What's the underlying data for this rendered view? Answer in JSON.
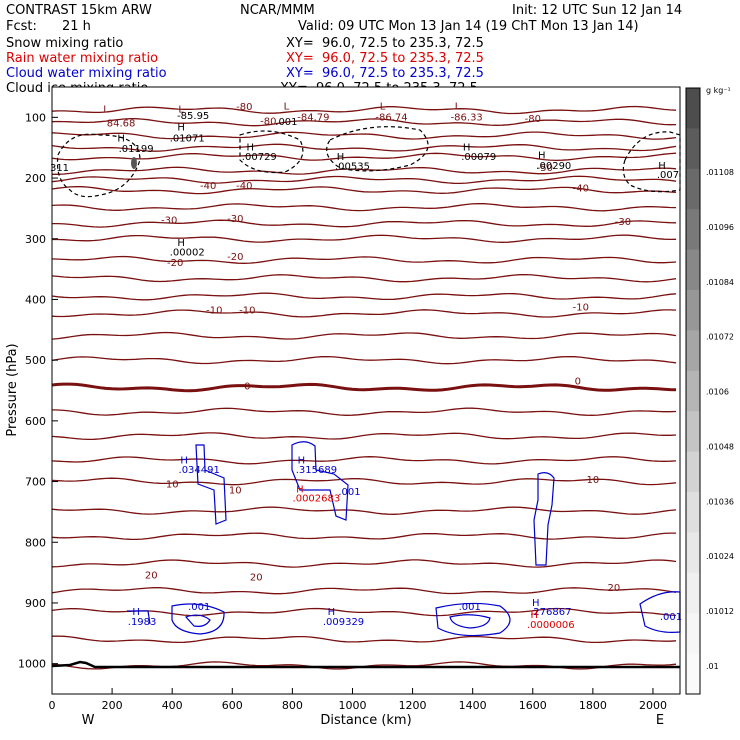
{
  "header": {
    "model": "CONTRAST 15km ARW",
    "org": "NCAR/MMM",
    "init": "Init: 12 UTC Sun 12 Jan 14",
    "fcst_label": "Fcst:",
    "fcst_value": "21 h",
    "valid": "Valid: 09 UTC Mon 13 Jan 14 (19 ChT Mon 13 Jan 14)",
    "xy": "XY=  96.0, 72.5 to 235.3, 72.5",
    "fields": [
      {
        "name": "Snow mixing ratio",
        "color": "#000000"
      },
      {
        "name": "Rain water mixing ratio",
        "color": "#dd0000"
      },
      {
        "name": "Cloud water mixing ratio",
        "color": "#0000cc"
      },
      {
        "name": "Cloud ice mixing ratio",
        "color": "#000000"
      }
    ]
  },
  "colorbar": {
    "unit": "g kg⁻¹",
    "labels": [
      ".01108",
      ".01096",
      ".01084",
      ".01072",
      ".0106",
      ".01048",
      ".01036",
      ".01024",
      ".01012",
      ".01"
    ],
    "shades": [
      "#4d4d4d",
      "#5c5c5c",
      "#6a6a6a",
      "#797979",
      "#888888",
      "#979797",
      "#a6a6a6",
      "#b5b5b5",
      "#c4c4c4",
      "#d3d3d3",
      "#dfdfdf",
      "#e8e8e8",
      "#f0f0f0",
      "#f6f6f6",
      "#fafafa"
    ]
  },
  "chart_data": {
    "type": "cross-section contour",
    "xlabel": "Distance (km)",
    "ylabel": "Pressure (hPa)",
    "x_ticks": [
      0,
      200,
      400,
      600,
      800,
      1000,
      1200,
      1400,
      1600,
      1800,
      2000
    ],
    "y_ticks": [
      100,
      200,
      300,
      400,
      500,
      600,
      700,
      800,
      900,
      1000
    ],
    "xlim": [
      0,
      2090
    ],
    "ylim": [
      50,
      1050
    ],
    "left_end_label": "W",
    "right_end_label": "E",
    "temperature_color": "#7a1010",
    "cloud_color": "#0000cc",
    "rain_color": "#dd0000",
    "temperature_isotherms": [
      {
        "label": "-80",
        "p": 88
      },
      {
        "label": "-80",
        "p": 108
      },
      {
        "label": "",
        "p": 130
      },
      {
        "label": "",
        "p": 150
      },
      {
        "label": "",
        "p": 165
      },
      {
        "label": "-50",
        "p": 188
      },
      {
        "label": "",
        "p": 203
      },
      {
        "label": "-40",
        "p": 220
      },
      {
        "label": "",
        "p": 248
      },
      {
        "label": "-30",
        "p": 275
      },
      {
        "label": "",
        "p": 300
      },
      {
        "label": "-20",
        "p": 335
      },
      {
        "label": "",
        "p": 365
      },
      {
        "label": "",
        "p": 395
      },
      {
        "label": "-10",
        "p": 423
      },
      {
        "label": "",
        "p": 460
      },
      {
        "label": "",
        "p": 500
      },
      {
        "label": "0",
        "p": 545
      },
      {
        "label": "",
        "p": 585
      },
      {
        "label": "",
        "p": 625
      },
      {
        "label": "",
        "p": 665
      },
      {
        "label": "10",
        "p": 700
      },
      {
        "label": "",
        "p": 748
      },
      {
        "label": "",
        "p": 790
      },
      {
        "label": "20",
        "p": 835
      },
      {
        "label": "",
        "p": 880
      },
      {
        "label": "",
        "p": 915
      },
      {
        "label": "",
        "p": 960
      },
      {
        "label": "",
        "p": 1003
      }
    ],
    "contour_labels": [
      {
        "text": "-80",
        "x": 640,
        "p": 88,
        "color": "#7a1010"
      },
      {
        "text": "-80",
        "x": 1600,
        "p": 108,
        "color": "#7a1010"
      },
      {
        "text": "-50",
        "x": 1640,
        "p": 188,
        "color": "#7a1010"
      },
      {
        "text": "-40",
        "x": 520,
        "p": 218,
        "color": "#7a1010"
      },
      {
        "text": "-40",
        "x": 640,
        "p": 218,
        "color": "#7a1010"
      },
      {
        "text": "-40",
        "x": 1760,
        "p": 222,
        "color": "#7a1010"
      },
      {
        "text": "-30",
        "x": 390,
        "p": 275,
        "color": "#7a1010"
      },
      {
        "text": "-30",
        "x": 610,
        "p": 272,
        "color": "#7a1010"
      },
      {
        "text": "-30",
        "x": 1900,
        "p": 277,
        "color": "#7a1010"
      },
      {
        "text": "-20",
        "x": 410,
        "p": 345,
        "color": "#7a1010"
      },
      {
        "text": "-20",
        "x": 610,
        "p": 335,
        "color": "#7a1010"
      },
      {
        "text": "-10",
        "x": 540,
        "p": 423,
        "color": "#7a1010"
      },
      {
        "text": "-10",
        "x": 650,
        "p": 423,
        "color": "#7a1010"
      },
      {
        "text": "-10",
        "x": 1760,
        "p": 418,
        "color": "#7a1010"
      },
      {
        "text": "0",
        "x": 650,
        "p": 548,
        "color": "#7a1010"
      },
      {
        "text": "0",
        "x": 1750,
        "p": 540,
        "color": "#7a1010"
      },
      {
        "text": "10",
        "x": 400,
        "p": 710,
        "color": "#7a1010"
      },
      {
        "text": "10",
        "x": 610,
        "p": 720,
        "color": "#7a1010"
      },
      {
        "text": "10",
        "x": 1800,
        "p": 702,
        "color": "#7a1010"
      },
      {
        "text": "20",
        "x": 330,
        "p": 860,
        "color": "#7a1010"
      },
      {
        "text": "20",
        "x": 680,
        "p": 863,
        "color": "#7a1010"
      },
      {
        "text": "20",
        "x": 1870,
        "p": 880,
        "color": "#7a1010"
      },
      {
        "text": "L",
        "x": 180,
        "p": 92,
        "color": "#7a1010"
      },
      {
        "text": "84.68",
        "x": 230,
        "p": 115,
        "color": "#7a1010"
      },
      {
        "text": "L",
        "x": 430,
        "p": 92,
        "color": "#7a1010"
      },
      {
        "text": "-85.95",
        "x": 470,
        "p": 103,
        "color": "#000000"
      },
      {
        "text": "H",
        "x": 430,
        "p": 122,
        "color": "#000000"
      },
      {
        "text": ".01071",
        "x": 450,
        "p": 140,
        "color": "#000000"
      },
      {
        "text": "-80",
        "x": 720,
        "p": 112,
        "color": "#7a1010"
      },
      {
        "text": ".001",
        "x": 780,
        "p": 113,
        "color": "#000000"
      },
      {
        "text": "L",
        "x": 780,
        "p": 87,
        "color": "#7a1010"
      },
      {
        "text": "-84.79",
        "x": 870,
        "p": 105,
        "color": "#7a1010"
      },
      {
        "text": "L",
        "x": 1100,
        "p": 87,
        "color": "#7a1010"
      },
      {
        "text": "-86.74",
        "x": 1130,
        "p": 105,
        "color": "#7a1010"
      },
      {
        "text": "L",
        "x": 1350,
        "p": 87,
        "color": "#7a1010"
      },
      {
        "text": "-86.33",
        "x": 1380,
        "p": 105,
        "color": "#7a1010"
      },
      {
        "text": "H",
        "x": 230,
        "p": 140,
        "color": "#000000"
      },
      {
        "text": ".01199",
        "x": 280,
        "p": 157,
        "color": "#000000"
      },
      {
        "text": "H",
        "x": 660,
        "p": 155,
        "color": "#000000"
      },
      {
        "text": ".00729",
        "x": 690,
        "p": 170,
        "color": "#000000"
      },
      {
        "text": "H",
        "x": 960,
        "p": 170,
        "color": "#000000"
      },
      {
        "text": ".00535",
        "x": 1000,
        "p": 186,
        "color": "#000000"
      },
      {
        "text": "H",
        "x": 1380,
        "p": 155,
        "color": "#000000"
      },
      {
        "text": ".00079",
        "x": 1420,
        "p": 170,
        "color": "#000000"
      },
      {
        "text": "H",
        "x": 1630,
        "p": 168,
        "color": "#000000"
      },
      {
        "text": ".00290",
        "x": 1670,
        "p": 185,
        "color": "#000000"
      },
      {
        "text": "H",
        "x": 2030,
        "p": 185,
        "color": "#000000"
      },
      {
        "text": ".007",
        "x": 2050,
        "p": 200,
        "color": "#000000"
      },
      {
        "text": "311",
        "x": 25,
        "p": 188,
        "color": "#000000"
      },
      {
        "text": "H",
        "x": 430,
        "p": 312,
        "color": "#000000"
      },
      {
        "text": ".00002",
        "x": 450,
        "p": 328,
        "color": "#000000"
      },
      {
        "text": "H",
        "x": 440,
        "p": 670,
        "color": "#0000cc"
      },
      {
        "text": ".034491",
        "x": 490,
        "p": 686,
        "color": "#0000cc"
      },
      {
        "text": "H",
        "x": 830,
        "p": 670,
        "color": "#0000cc"
      },
      {
        "text": ".315689",
        "x": 880,
        "p": 686,
        "color": "#0000cc"
      },
      {
        "text": "H",
        "x": 825,
        "p": 718,
        "color": "#dd0000"
      },
      {
        "text": ".0002683",
        "x": 880,
        "p": 733,
        "color": "#dd0000"
      },
      {
        "text": ".001",
        "x": 990,
        "p": 722,
        "color": "#0000cc"
      },
      {
        "text": ".001",
        "x": 490,
        "p": 912,
        "color": "#0000cc"
      },
      {
        "text": "H",
        "x": 280,
        "p": 920,
        "color": "#0000cc"
      },
      {
        "text": ".1983",
        "x": 300,
        "p": 936,
        "color": "#0000cc"
      },
      {
        "text": "H",
        "x": 930,
        "p": 920,
        "color": "#0000cc"
      },
      {
        "text": ".009329",
        "x": 970,
        "p": 936,
        "color": "#0000cc"
      },
      {
        "text": ".001",
        "x": 1390,
        "p": 912,
        "color": "#0000cc"
      },
      {
        "text": "H",
        "x": 1610,
        "p": 905,
        "color": "#0000cc"
      },
      {
        "text": ".276867",
        "x": 1660,
        "p": 920,
        "color": "#0000cc"
      },
      {
        "text": "H",
        "x": 1605,
        "p": 925,
        "color": "#dd0000"
      },
      {
        "text": ".0000006",
        "x": 1660,
        "p": 941,
        "color": "#dd0000"
      },
      {
        "text": ".001",
        "x": 2060,
        "p": 928,
        "color": "#0000cc"
      }
    ]
  }
}
